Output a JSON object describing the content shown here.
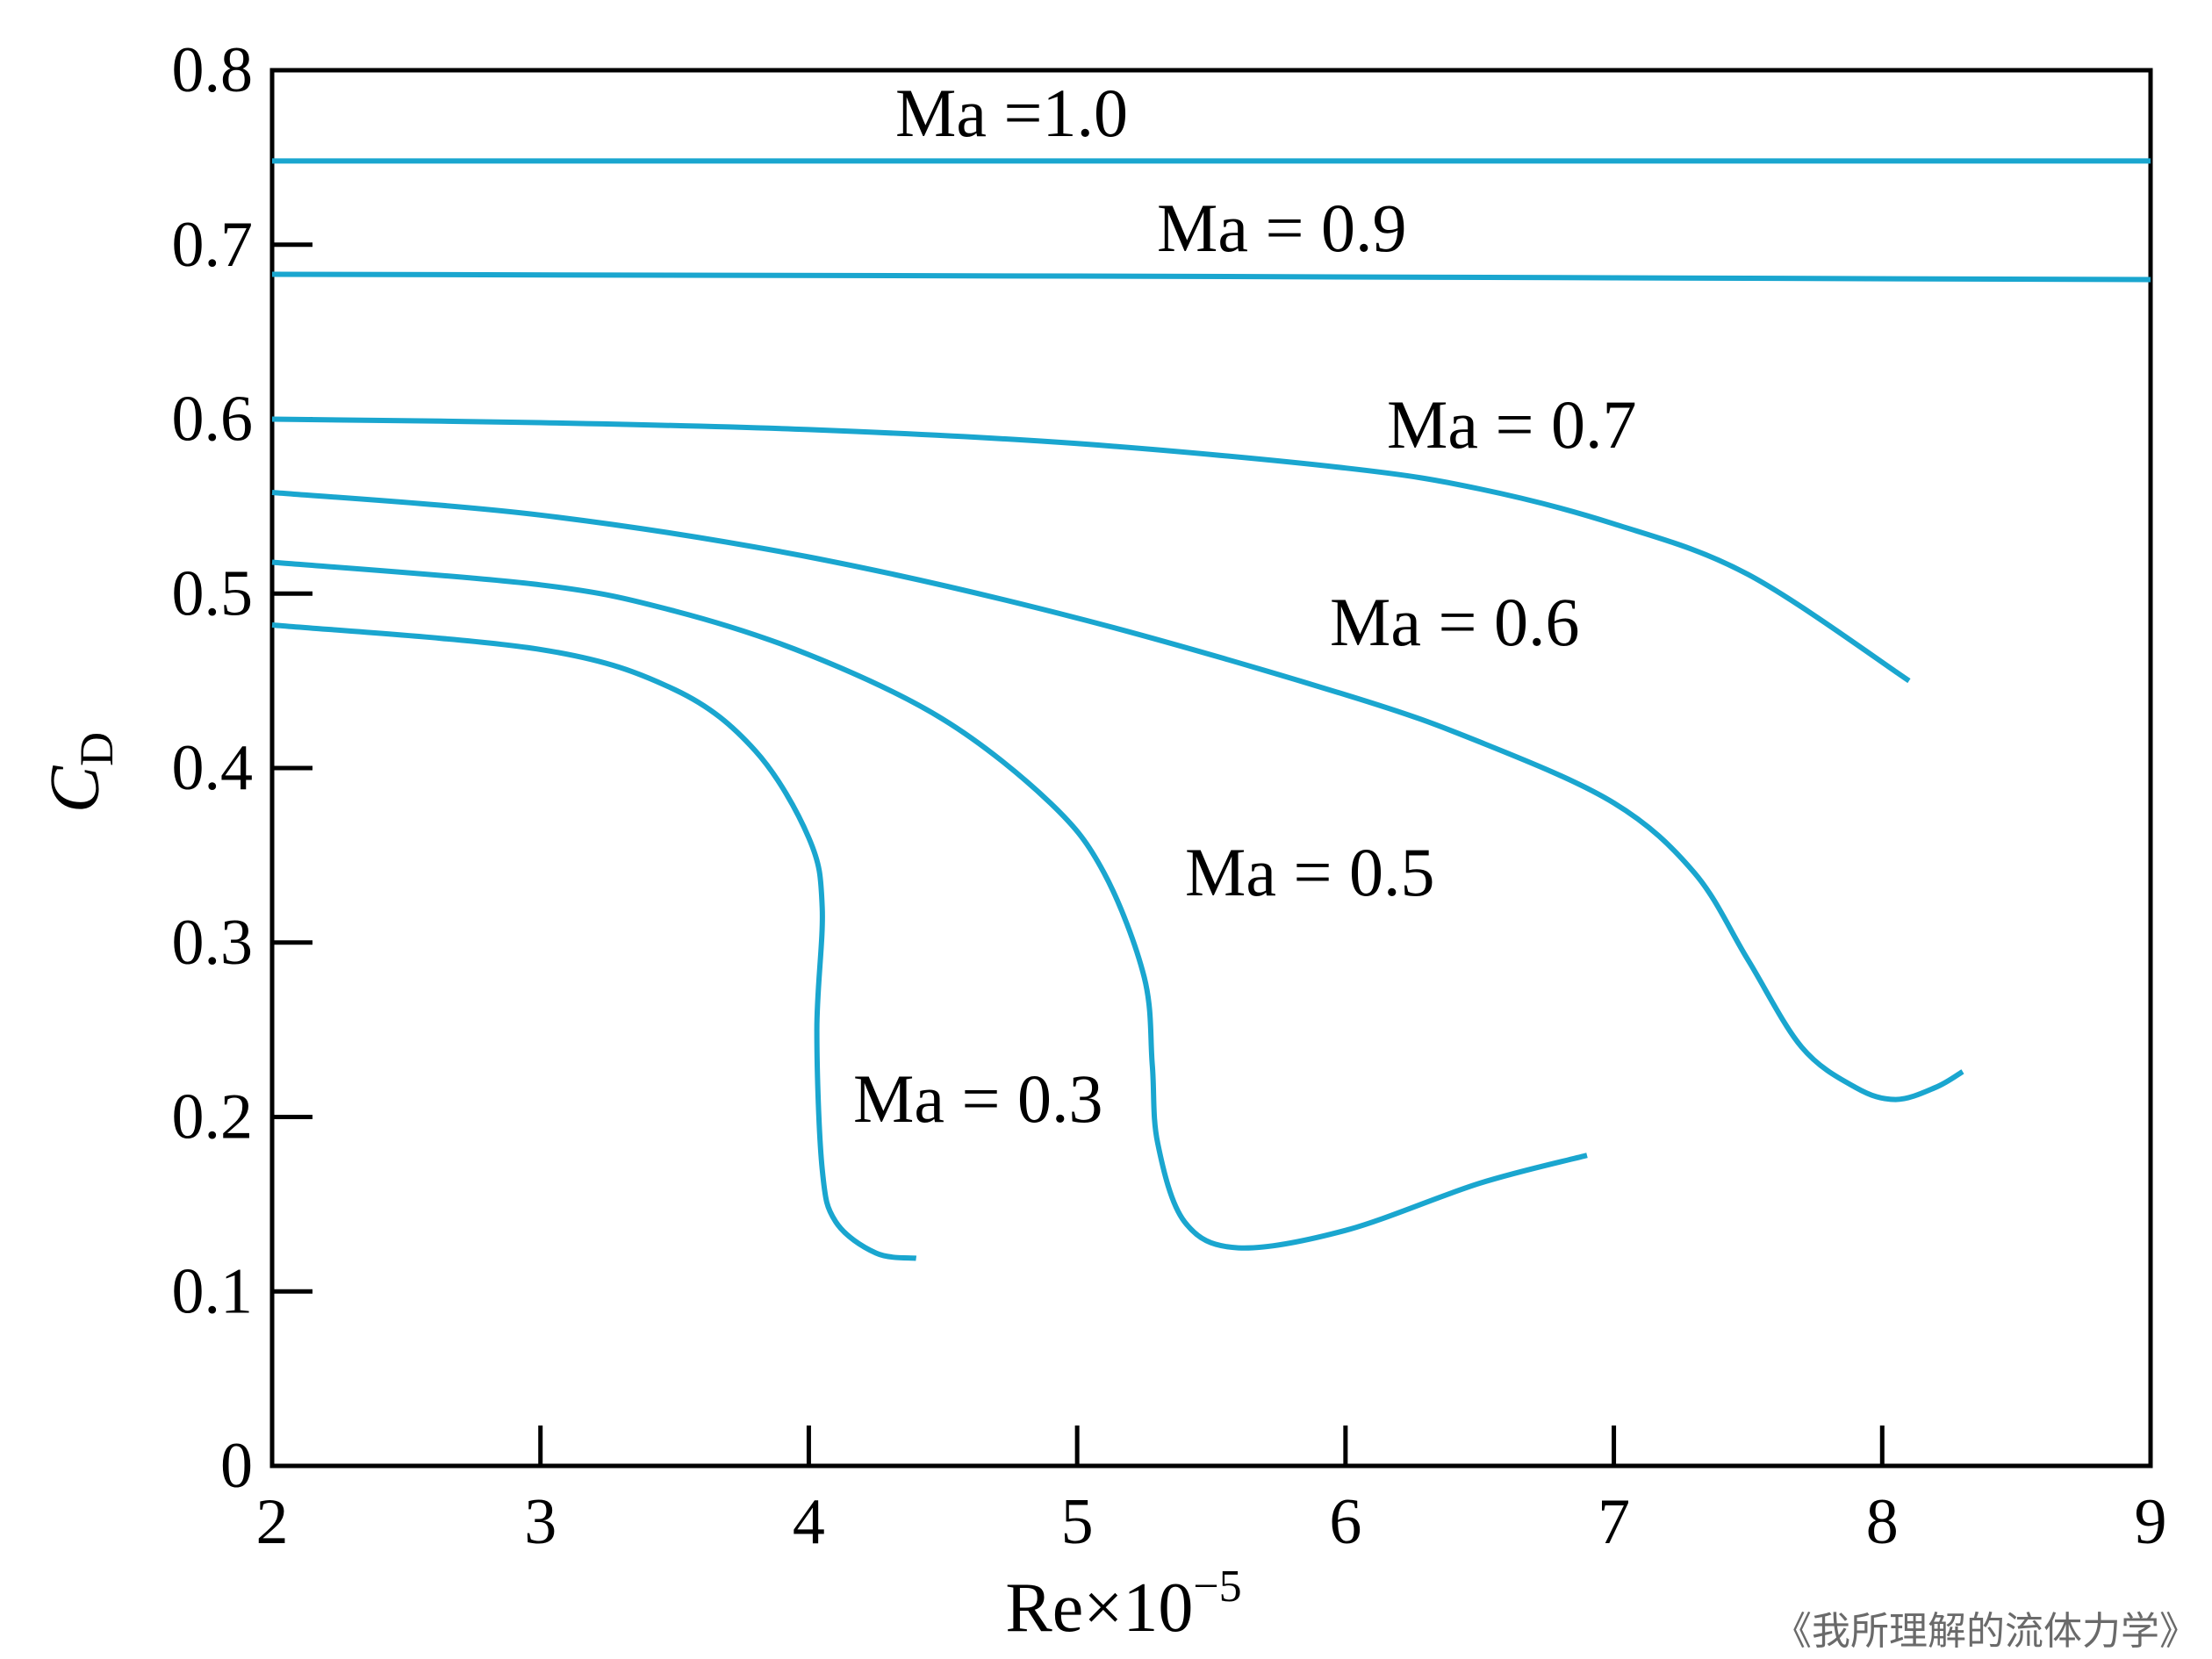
{
  "chart_data": {
    "type": "line",
    "xlabel": {
      "base": "Re×10",
      "exponent": "−5"
    },
    "ylabel": {
      "base": "C",
      "subscript": "D"
    },
    "xlim": [
      2,
      9
    ],
    "ylim": [
      0,
      0.8
    ],
    "xticks": [
      "2",
      "3",
      "4",
      "5",
      "6",
      "7",
      "8",
      "9"
    ],
    "yticks": [
      "0",
      "0.1",
      "0.2",
      "0.3",
      "0.4",
      "0.5",
      "0.6",
      "0.7",
      "0.8"
    ],
    "grid": false,
    "legend": "none (series labeled inline)",
    "line_color": "#1aa6cf",
    "series": [
      {
        "name": "Ma =1.0",
        "points": [
          [
            2.0,
            0.748
          ],
          [
            9.0,
            0.748
          ]
        ]
      },
      {
        "name": "Ma = 0.9",
        "points": [
          [
            2.0,
            0.683
          ],
          [
            5.0,
            0.682
          ],
          [
            7.0,
            0.681
          ],
          [
            9.0,
            0.68
          ]
        ]
      },
      {
        "name": "Ma = 0.7",
        "points": [
          [
            2.0,
            0.6
          ],
          [
            3.0,
            0.598
          ],
          [
            4.0,
            0.594
          ],
          [
            5.0,
            0.586
          ],
          [
            6.0,
            0.572
          ],
          [
            6.5,
            0.56
          ],
          [
            7.0,
            0.54
          ],
          [
            7.5,
            0.511
          ],
          [
            8.1,
            0.45
          ]
        ]
      },
      {
        "name": "Ma = 0.6",
        "points": [
          [
            2.0,
            0.558
          ],
          [
            3.0,
            0.545
          ],
          [
            4.0,
            0.521
          ],
          [
            5.0,
            0.486
          ],
          [
            6.0,
            0.442
          ],
          [
            6.5,
            0.415
          ],
          [
            7.0,
            0.38
          ],
          [
            7.3,
            0.34
          ],
          [
            7.5,
            0.29
          ],
          [
            7.7,
            0.24
          ],
          [
            7.9,
            0.217
          ],
          [
            8.05,
            0.21
          ],
          [
            8.2,
            0.217
          ],
          [
            8.3,
            0.226
          ]
        ]
      },
      {
        "name": "Ma = 0.5",
        "points": [
          [
            2.0,
            0.518
          ],
          [
            3.0,
            0.505
          ],
          [
            3.5,
            0.49
          ],
          [
            4.0,
            0.465
          ],
          [
            4.5,
            0.428
          ],
          [
            4.9,
            0.38
          ],
          [
            5.1,
            0.34
          ],
          [
            5.25,
            0.28
          ],
          [
            5.28,
            0.23
          ],
          [
            5.3,
            0.185
          ],
          [
            5.4,
            0.14
          ],
          [
            5.6,
            0.125
          ],
          [
            6.0,
            0.135
          ],
          [
            6.5,
            0.162
          ],
          [
            6.9,
            0.178
          ]
        ]
      },
      {
        "name": "Ma = 0.3",
        "points": [
          [
            2.0,
            0.482
          ],
          [
            3.0,
            0.468
          ],
          [
            3.5,
            0.445
          ],
          [
            3.8,
            0.41
          ],
          [
            4.0,
            0.36
          ],
          [
            4.05,
            0.32
          ],
          [
            4.03,
            0.25
          ],
          [
            4.05,
            0.17
          ],
          [
            4.1,
            0.14
          ],
          [
            4.25,
            0.122
          ],
          [
            4.4,
            0.119
          ]
        ]
      }
    ]
  },
  "watermark": "《我所理解的流体力学》"
}
